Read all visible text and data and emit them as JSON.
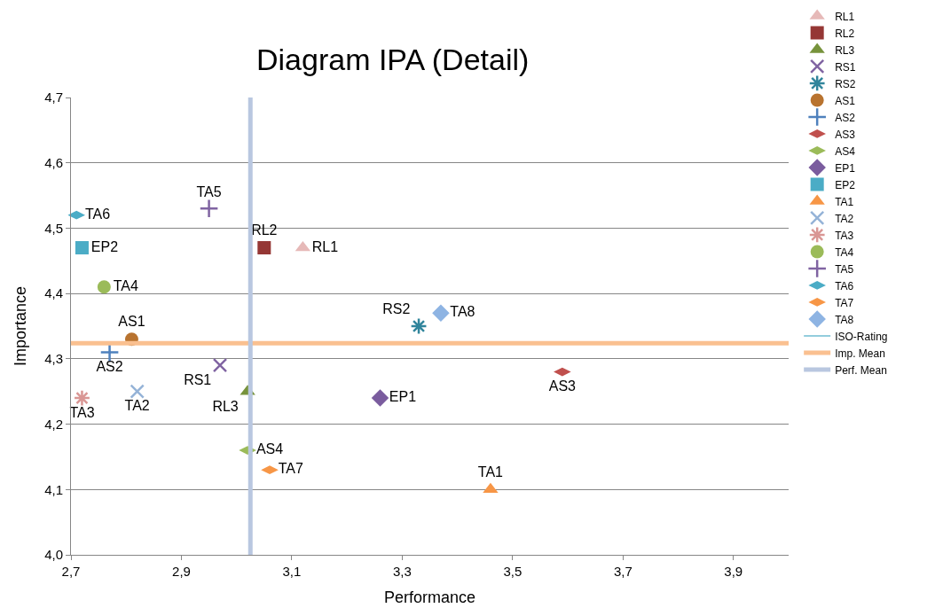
{
  "chart_data": {
    "type": "scatter",
    "title": "Diagram IPA (Detail)",
    "xlabel": "Performance",
    "ylabel": "Importance",
    "xlim": [
      2.7,
      4.0
    ],
    "xticks": [
      {
        "value": 2.7,
        "label": "2,7"
      },
      {
        "value": 2.9,
        "label": "2,9"
      },
      {
        "value": 3.1,
        "label": "3,1"
      },
      {
        "value": 3.3,
        "label": "3,3"
      },
      {
        "value": 3.5,
        "label": "3,5"
      },
      {
        "value": 3.7,
        "label": "3,7"
      },
      {
        "value": 3.9,
        "label": "3,9"
      }
    ],
    "ylim": [
      4.0,
      4.7
    ],
    "yticks": [
      {
        "value": 4.0,
        "label": "4,0"
      },
      {
        "value": 4.1,
        "label": "4,1"
      },
      {
        "value": 4.2,
        "label": "4,2"
      },
      {
        "value": 4.3,
        "label": "4,3"
      },
      {
        "value": 4.4,
        "label": "4,4"
      },
      {
        "value": 4.5,
        "label": "4,5"
      },
      {
        "value": 4.6,
        "label": "4,6"
      },
      {
        "value": 4.7,
        "label": "4,7"
      }
    ],
    "grid": "y",
    "legend": "right",
    "series": [
      {
        "name": "RL1",
        "color": "#e6b9b8",
        "marker": "triangle",
        "x": [
          3.12
        ],
        "values": [
          4.47
        ]
      },
      {
        "name": "RL2",
        "color": "#953735",
        "marker": "square",
        "x": [
          3.05
        ],
        "values": [
          4.47
        ]
      },
      {
        "name": "RL3",
        "color": "#77933c",
        "marker": "triangle",
        "x": [
          3.02
        ],
        "values": [
          4.25
        ]
      },
      {
        "name": "RS1",
        "color": "#8064a2",
        "marker": "x",
        "x": [
          2.97
        ],
        "values": [
          4.29
        ]
      },
      {
        "name": "RS2",
        "color": "#31859c",
        "marker": "cross",
        "x": [
          3.33
        ],
        "values": [
          4.35
        ]
      },
      {
        "name": "AS1",
        "color": "#b8732f",
        "marker": "circle",
        "x": [
          2.81
        ],
        "values": [
          4.33
        ]
      },
      {
        "name": "AS2",
        "color": "#4f81bd",
        "marker": "plus",
        "x": [
          2.77
        ],
        "values": [
          4.31
        ]
      },
      {
        "name": "AS3",
        "color": "#c0504d",
        "x": [
          3.59
        ],
        "values": [
          4.28
        ]
      },
      {
        "name": "AS4",
        "color": "#9bbb59",
        "x": [
          3.02
        ],
        "values": [
          4.16
        ]
      },
      {
        "name": "EP1",
        "color": "#7a5c9e",
        "marker": "diamond",
        "x": [
          3.26
        ],
        "values": [
          4.24
        ]
      },
      {
        "name": "EP2",
        "color": "#4bacc6",
        "marker": "square",
        "x": [
          2.72
        ],
        "values": [
          4.47
        ]
      },
      {
        "name": "TA1",
        "color": "#f79646",
        "marker": "triangle",
        "x": [
          3.46
        ],
        "values": [
          4.1
        ]
      },
      {
        "name": "TA2",
        "color": "#95b3d7",
        "marker": "x",
        "x": [
          2.82
        ],
        "values": [
          4.25
        ]
      },
      {
        "name": "TA3",
        "color": "#d99694",
        "marker": "cross",
        "x": [
          2.72
        ],
        "values": [
          4.24
        ]
      },
      {
        "name": "TA4",
        "color": "#9bbb59",
        "marker": "circle",
        "x": [
          2.76
        ],
        "values": [
          4.41
        ]
      },
      {
        "name": "TA5",
        "color": "#8064a2",
        "marker": "plus",
        "x": [
          2.95
        ],
        "values": [
          4.53
        ]
      },
      {
        "name": "TA6",
        "color": "#4bacc6",
        "x": [
          2.71
        ],
        "values": [
          4.52
        ]
      },
      {
        "name": "TA7",
        "color": "#f79646",
        "x": [
          3.06
        ],
        "values": [
          4.13
        ]
      },
      {
        "name": "TA8",
        "color": "#8eb4e3",
        "marker": "diamond",
        "x": [
          3.37
        ],
        "values": [
          4.37
        ]
      },
      {
        "name": "ISO-Rating",
        "color": "#93cddd",
        "type": "line",
        "marker": "none"
      },
      {
        "name": "Imp. Mean",
        "color": "#fac090",
        "type": "line",
        "marker": "none",
        "x": [
          2.7,
          4.0
        ],
        "values": [
          4.324,
          4.324
        ]
      },
      {
        "name": "Perf. Mean",
        "color": "#b9c7e0",
        "type": "line",
        "marker": "none",
        "x": [
          3.025,
          3.025
        ],
        "values": [
          4.0,
          4.7
        ]
      }
    ]
  }
}
